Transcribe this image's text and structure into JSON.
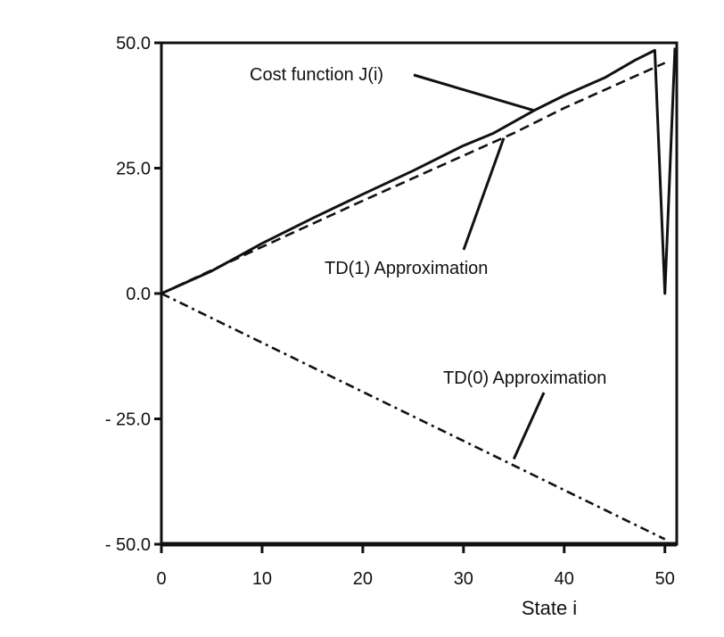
{
  "chart_data": {
    "type": "line",
    "title": "",
    "xlabel": "State i",
    "ylabel": "",
    "xlim": [
      0,
      51
    ],
    "ylim": [
      -50,
      50
    ],
    "grid": false,
    "x_ticks": [
      0,
      10,
      20,
      30,
      40,
      50
    ],
    "x_tick_labels": [
      "0",
      "10",
      "20",
      "30",
      "40",
      "50"
    ],
    "y_ticks": [
      50,
      25,
      0,
      -25,
      -50
    ],
    "y_tick_labels": [
      "50.0",
      "25.0",
      "0.0",
      "- 25.0",
      "- 50.0"
    ],
    "series": [
      {
        "name": "Cost function J(i)",
        "style": "solid",
        "x": [
          0,
          5,
          10,
          15,
          20,
          25,
          30,
          33,
          37,
          40,
          44,
          47,
          49,
          50,
          51
        ],
        "y": [
          0,
          4.5,
          10,
          15,
          19.8,
          24.5,
          29.5,
          32,
          36.5,
          39.5,
          43,
          46.5,
          48.5,
          0,
          49
        ]
      },
      {
        "name": "TD(1) Approximation",
        "style": "dashed",
        "x": [
          0,
          10,
          20,
          25,
          30,
          35,
          40,
          45,
          50
        ],
        "y": [
          0,
          9.3,
          18.5,
          23,
          27.5,
          32,
          37,
          41.5,
          46
        ]
      },
      {
        "name": "TD(0) Approximation",
        "style": "dashdot",
        "x": [
          0,
          10,
          20,
          30,
          40,
          50
        ],
        "y": [
          0,
          -9.8,
          -19.6,
          -29.4,
          -39.2,
          -49
        ]
      }
    ],
    "annotations": [
      {
        "text": "Cost function J(i)",
        "points_to": {
          "x": 37,
          "y": 36.5
        }
      },
      {
        "text": "TD(1) Approximation",
        "points_to": {
          "x": 34,
          "y": 31
        }
      },
      {
        "text": "TD(0) Approximation",
        "points_to": {
          "x": 35,
          "y": -33
        }
      }
    ]
  }
}
